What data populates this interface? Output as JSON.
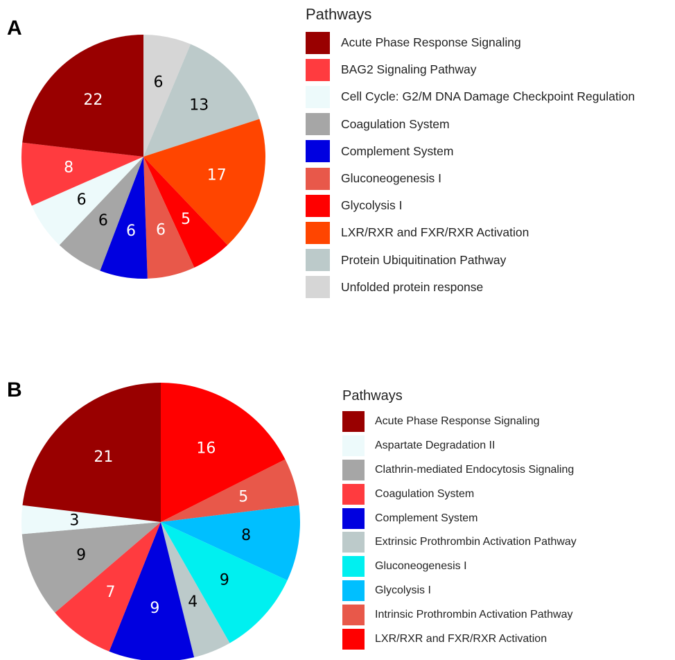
{
  "chart_data": [
    {
      "type": "pie",
      "panel_label": "A",
      "legend_title": "Pathways",
      "legend_placement": "right",
      "legend": [
        {
          "label": "Acute Phase Response Signaling",
          "color": "#990000"
        },
        {
          "label": "BAG2 Signaling Pathway",
          "color": "#ff3b3f"
        },
        {
          "label": "Cell Cycle: G2/M DNA Damage Checkpoint Regulation",
          "color": "#edfafb"
        },
        {
          "label": "Coagulation System",
          "color": "#a6a6a6"
        },
        {
          "label": "Complement System",
          "color": "#0000e0"
        },
        {
          "label": "Gluconeogenesis I",
          "color": "#e8584a"
        },
        {
          "label": "Glycolysis I",
          "color": "#ff0000"
        },
        {
          "label": "LXR/RXR and FXR/RXR Activation",
          "color": "#ff4500"
        },
        {
          "label": "Protein Ubiquitination Pathway",
          "color": "#bccaca"
        },
        {
          "label": "Unfolded protein response",
          "color": "#d6d6d6"
        }
      ],
      "slices": [
        {
          "label": "Unfolded protein response",
          "value": 6,
          "color": "#d6d6d6",
          "label_color": "#000000"
        },
        {
          "label": "Protein Ubiquitination Pathway",
          "value": 13,
          "color": "#bccaca",
          "label_color": "#000000"
        },
        {
          "label": "LXR/RXR and FXR/RXR Activation",
          "value": 17,
          "color": "#ff4500",
          "label_color": "#ffffff"
        },
        {
          "label": "Glycolysis I",
          "value": 5,
          "color": "#ff0000",
          "label_color": "#ffffff"
        },
        {
          "label": "Gluconeogenesis I",
          "value": 6,
          "color": "#e8584a",
          "label_color": "#ffffff"
        },
        {
          "label": "Complement System",
          "value": 6,
          "color": "#0000e0",
          "label_color": "#ffffff"
        },
        {
          "label": "Coagulation System",
          "value": 6,
          "color": "#a6a6a6",
          "label_color": "#000000"
        },
        {
          "label": "Cell Cycle: G2/M DNA Damage Checkpoint Regulation",
          "value": 6,
          "color": "#edfafb",
          "label_color": "#000000"
        },
        {
          "label": "BAG2 Signaling Pathway",
          "value": 8,
          "color": "#ff3b3f",
          "label_color": "#ffffff"
        },
        {
          "label": "Acute Phase Response Signaling",
          "value": 22,
          "color": "#990000",
          "label_color": "#ffffff"
        }
      ]
    },
    {
      "type": "pie",
      "panel_label": "B",
      "legend_title": "Pathways",
      "legend_placement": "right",
      "legend": [
        {
          "label": "Acute Phase Response Signaling",
          "color": "#990000"
        },
        {
          "label": "Aspartate Degradation II",
          "color": "#edfafb"
        },
        {
          "label": "Clathrin-mediated Endocytosis Signaling",
          "color": "#a6a6a6"
        },
        {
          "label": "Coagulation System",
          "color": "#ff3b3f"
        },
        {
          "label": "Complement System",
          "color": "#0000e0"
        },
        {
          "label": "Extrinsic Prothrombin Activation Pathway",
          "color": "#bccaca"
        },
        {
          "label": "Gluconeogenesis I",
          "color": "#00f0f0"
        },
        {
          "label": "Glycolysis I",
          "color": "#00bfff"
        },
        {
          "label": "Intrinsic Prothrombin Activation Pathway",
          "color": "#e8584a"
        },
        {
          "label": "LXR/RXR and FXR/RXR Activation",
          "color": "#ff0000"
        }
      ],
      "slices": [
        {
          "label": "LXR/RXR and FXR/RXR Activation",
          "value": 16,
          "color": "#ff0000",
          "label_color": "#ffffff"
        },
        {
          "label": "Intrinsic Prothrombin Activation Pathway",
          "value": 5,
          "color": "#e8584a",
          "label_color": "#ffffff"
        },
        {
          "label": "Glycolysis I",
          "value": 8,
          "color": "#00bfff",
          "label_color": "#000000"
        },
        {
          "label": "Gluconeogenesis I",
          "value": 9,
          "color": "#00f0f0",
          "label_color": "#000000"
        },
        {
          "label": "Extrinsic Prothrombin Activation Pathway",
          "value": 4,
          "color": "#bccaca",
          "label_color": "#000000"
        },
        {
          "label": "Complement System",
          "value": 9,
          "color": "#0000e0",
          "label_color": "#ffffff"
        },
        {
          "label": "Coagulation System",
          "value": 7,
          "color": "#ff3b3f",
          "label_color": "#ffffff"
        },
        {
          "label": "Clathrin-mediated Endocytosis Signaling",
          "value": 9,
          "color": "#a6a6a6",
          "label_color": "#000000"
        },
        {
          "label": "Aspartate Degradation II",
          "value": 3,
          "color": "#edfafb",
          "label_color": "#000000"
        },
        {
          "label": "Acute Phase Response Signaling",
          "value": 21,
          "color": "#990000",
          "label_color": "#ffffff"
        }
      ]
    }
  ]
}
